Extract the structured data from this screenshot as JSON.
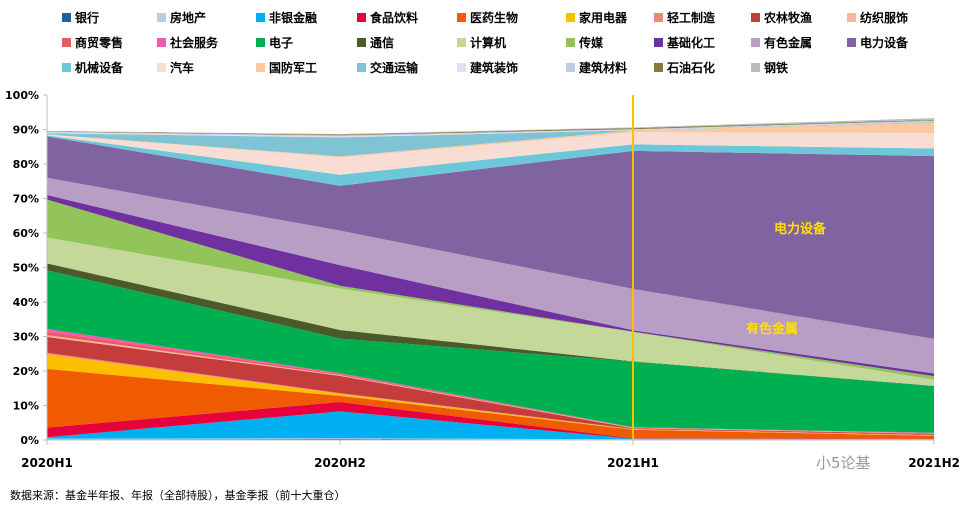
{
  "chart_data": {
    "type": "area",
    "stacked": true,
    "categories": [
      "2020H1",
      "2020H2",
      "2021H1",
      "2021H2"
    ],
    "ylim": [
      0,
      100
    ],
    "y_ticks": [
      "0%",
      "10%",
      "20%",
      "30%",
      "40%",
      "50%",
      "60%",
      "70%",
      "80%",
      "90%",
      "100%"
    ],
    "grid": false,
    "legend_position": "top",
    "series": [
      {
        "name": "银行",
        "color": "#1f5fa8",
        "values": [
          0.2,
          0.3,
          0.1,
          0.1
        ]
      },
      {
        "name": "房地产",
        "color": "#b7cde3",
        "values": [
          0.2,
          0.2,
          0.1,
          0.1
        ]
      },
      {
        "name": "非银金融",
        "color": "#00b0f0",
        "values": [
          0.4,
          7.8,
          0.2,
          0.1
        ]
      },
      {
        "name": "食品饮料",
        "color": "#e8003c",
        "values": [
          2.8,
          2.7,
          0.1,
          0.1
        ]
      },
      {
        "name": "医药生物",
        "color": "#f05a00",
        "values": [
          17,
          1.8,
          2.5,
          0.8
        ]
      },
      {
        "name": "家用电器",
        "color": "#fbbf00",
        "values": [
          4.3,
          0.6,
          0.1,
          0.1
        ]
      },
      {
        "name": "轻工制造",
        "color": "#f0857a",
        "values": [
          0.4,
          0.2,
          0.1,
          0.2
        ]
      },
      {
        "name": "农林牧渔",
        "color": "#c43c3c",
        "values": [
          4.6,
          5.0,
          0.2,
          0.3
        ]
      },
      {
        "name": "纺织服饰",
        "color": "#f4b9a5",
        "values": [
          0.5,
          0.2,
          0.1,
          0.1
        ]
      },
      {
        "name": "商贸零售",
        "color": "#ee5a5a",
        "values": [
          1.0,
          0.3,
          0.1,
          0.1
        ]
      },
      {
        "name": "社会服务",
        "color": "#f05ab4",
        "values": [
          0.8,
          0.3,
          0.1,
          0.1
        ]
      },
      {
        "name": "电子",
        "color": "#00b050",
        "values": [
          17,
          10,
          19,
          13.5
        ]
      },
      {
        "name": "通信",
        "color": "#4a5a2a",
        "values": [
          2.0,
          2.5,
          0.1,
          0.1
        ]
      },
      {
        "name": "计算机",
        "color": "#c4d89a",
        "values": [
          7.5,
          12,
          8.5,
          1.8
        ]
      },
      {
        "name": "传媒",
        "color": "#92c45a",
        "values": [
          11,
          0.8,
          0.1,
          1.0
        ]
      },
      {
        "name": "基础化工",
        "color": "#7030a0",
        "values": [
          1.3,
          6.0,
          0.4,
          0.8
        ]
      },
      {
        "name": "有色金属",
        "color": "#b89ec4",
        "values": [
          5.0,
          10,
          12,
          10
        ]
      },
      {
        "name": "电力设备",
        "color": "#8064a2",
        "values": [
          12,
          13,
          40,
          53
        ]
      },
      {
        "name": "机械设备",
        "color": "#6cc8d8",
        "values": [
          0.3,
          3.2,
          1.9,
          2.2
        ]
      },
      {
        "name": "汽车",
        "color": "#f8ddd5",
        "values": [
          0.2,
          5.0,
          3.5,
          4.5
        ]
      },
      {
        "name": "国防军工",
        "color": "#fbc9a0",
        "values": [
          0.1,
          0.3,
          0.5,
          3.0
        ]
      },
      {
        "name": "交通运输",
        "color": "#7ec4d4",
        "values": [
          0.3,
          5.5,
          0.1,
          0.2
        ]
      },
      {
        "name": "建筑装饰",
        "color": "#eadcf0",
        "values": [
          0.2,
          0.3,
          0.1,
          0.1
        ]
      },
      {
        "name": "建筑材料",
        "color": "#c0cce4",
        "values": [
          0.3,
          0.3,
          0.2,
          0.3
        ]
      },
      {
        "name": "石油石化",
        "color": "#8a7a3a",
        "values": [
          0.1,
          0.2,
          0.3,
          0.2
        ]
      },
      {
        "name": "钢铁",
        "color": "#bcbcbc",
        "values": [
          0.1,
          0.2,
          0.2,
          0.5
        ]
      }
    ],
    "annotations": [
      {
        "text": "电力设备",
        "series": "电力设备",
        "category": "2021H2",
        "color": "#ffe000"
      },
      {
        "text": "有色金属",
        "series": "有色金属",
        "category": "2021H2",
        "color": "#ffe000"
      }
    ],
    "marker_line": {
      "category": "2021H1",
      "color": "#ffc000"
    }
  },
  "source_note": "数据来源：基金半年报、年报（全部持股），基金季报（前十大重仓）",
  "watermark": "小5论基"
}
